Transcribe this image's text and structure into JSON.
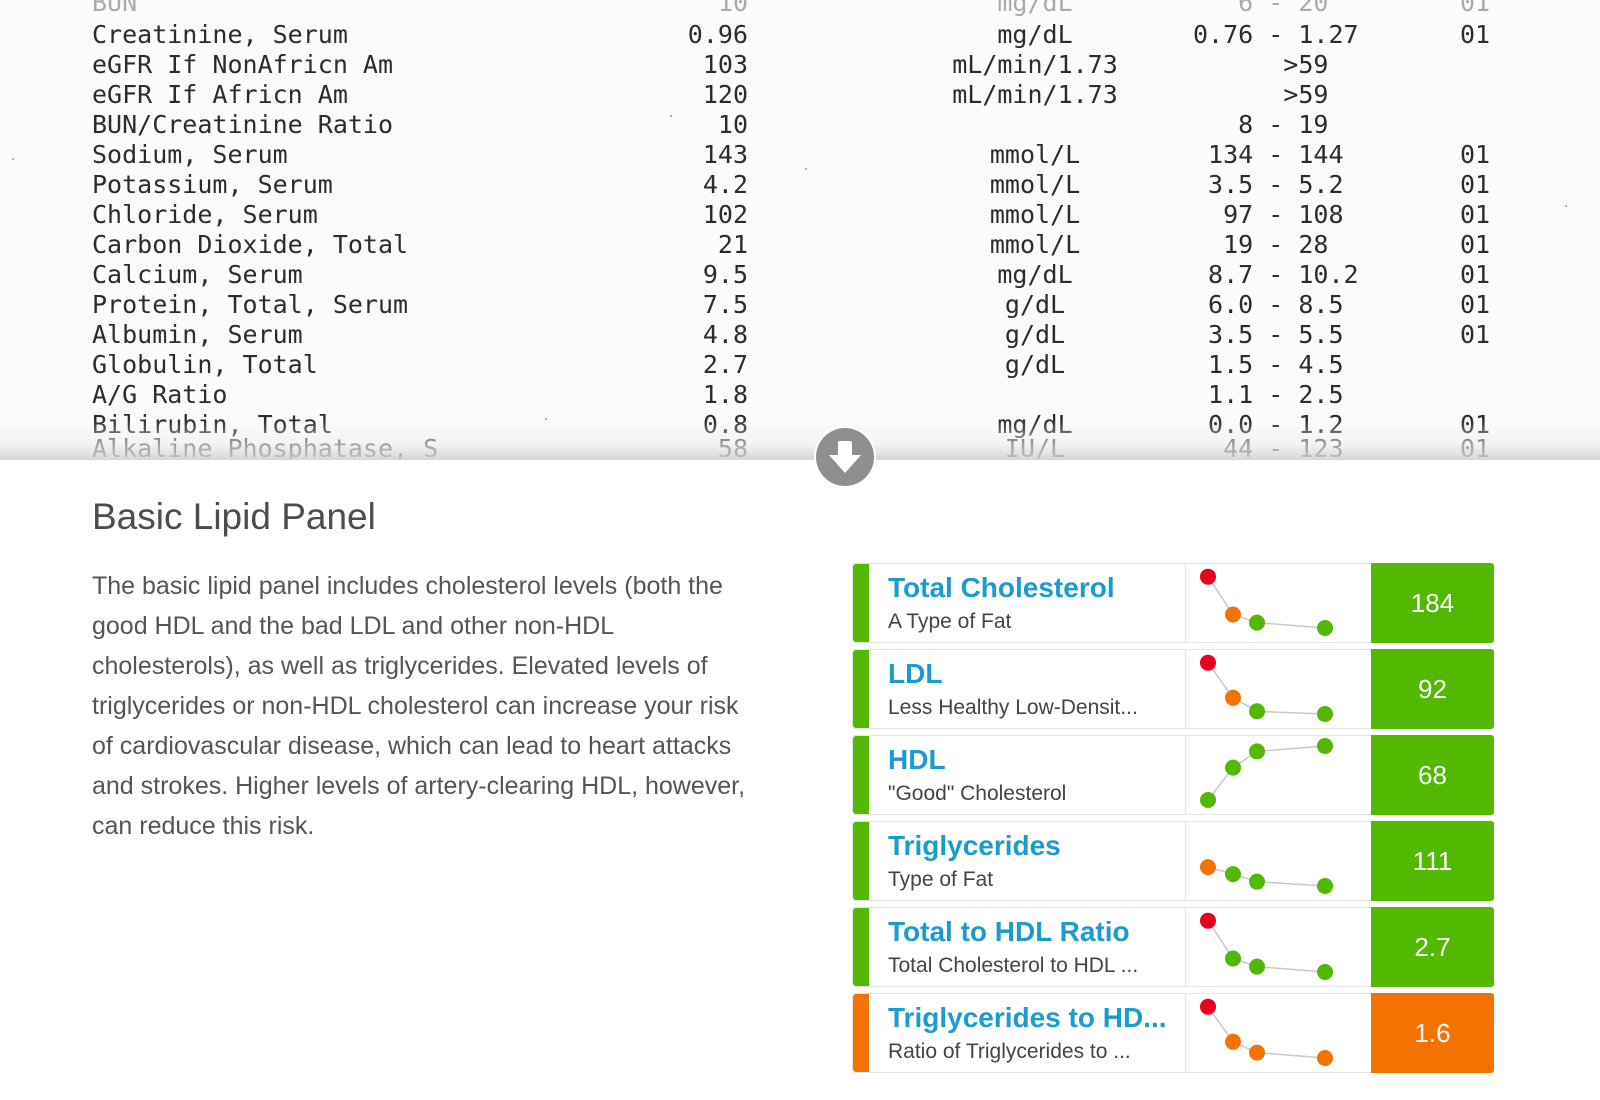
{
  "lab_report": {
    "rows": [
      {
        "name": "Creatinine, Serum",
        "value": "0.96",
        "unit": "mg/dL",
        "ref": "0.76 - 1.27",
        "flag": "01"
      },
      {
        "name": "eGFR If NonAfricn Am",
        "value": "103",
        "unit": "mL/min/1.73",
        "ref": "      >59",
        "flag": ""
      },
      {
        "name": "eGFR If Africn Am",
        "value": "120",
        "unit": "mL/min/1.73",
        "ref": "      >59",
        "flag": ""
      },
      {
        "name": "BUN/Creatinine Ratio",
        "value": "10",
        "unit": "",
        "ref": "   8 - 19",
        "flag": ""
      },
      {
        "name": "Sodium, Serum",
        "value": "143",
        "unit": "mmol/L",
        "ref": " 134 - 144",
        "flag": "01"
      },
      {
        "name": "Potassium, Serum",
        "value": "4.2",
        "unit": "mmol/L",
        "ref": " 3.5 - 5.2",
        "flag": "01"
      },
      {
        "name": "Chloride, Serum",
        "value": "102",
        "unit": "mmol/L",
        "ref": "  97 - 108",
        "flag": "01"
      },
      {
        "name": "Carbon Dioxide, Total",
        "value": "21",
        "unit": "mmol/L",
        "ref": "  19 - 28",
        "flag": "01"
      },
      {
        "name": "Calcium, Serum",
        "value": "9.5",
        "unit": "mg/dL",
        "ref": " 8.7 - 10.2",
        "flag": "01"
      },
      {
        "name": "Protein, Total, Serum",
        "value": "7.5",
        "unit": "g/dL",
        "ref": " 6.0 - 8.5",
        "flag": "01"
      },
      {
        "name": "Albumin, Serum",
        "value": "4.8",
        "unit": "g/dL",
        "ref": " 3.5 - 5.5",
        "flag": "01"
      },
      {
        "name": "Globulin, Total",
        "value": "2.7",
        "unit": "g/dL",
        "ref": " 1.5 - 4.5",
        "flag": ""
      },
      {
        "name": "A/G Ratio",
        "value": "1.8",
        "unit": "",
        "ref": " 1.1 - 2.5",
        "flag": ""
      },
      {
        "name": "Bilirubin, Total",
        "value": "0.8",
        "unit": "mg/dL",
        "ref": " 0.0 - 1.2",
        "flag": "01"
      }
    ]
  },
  "scroll_icon": "arrow-down-circle-icon",
  "panel": {
    "title": "Basic Lipid Panel",
    "description": "The basic lipid panel includes cholesterol levels (both the good HDL and the bad LDL and other non-HDL cholesterols), as well as triglycerides. Elevated levels of triglycerides or non-HDL cholesterol can increase your risk of cardiovascular disease, which can lead to heart attacks and strokes. Higher levels of artery-clearing HDL, however, can reduce this risk."
  },
  "colors": {
    "green": "#52b800",
    "orange": "#f47300",
    "red": "#e8001c",
    "link": "#1a9ccf"
  },
  "lipids": [
    {
      "name": "Total Cholesterol",
      "subtitle": "A Type of Fat",
      "value": "184",
      "status": "green",
      "trend": [
        {
          "v": 0.95,
          "c": "red"
        },
        {
          "v": 0.25,
          "c": "orange"
        },
        {
          "v": 0.1,
          "c": "green"
        },
        {
          "v": 0.0,
          "c": "green"
        }
      ]
    },
    {
      "name": "LDL",
      "subtitle": "Less Healthy Low-Densit...",
      "value": "92",
      "status": "green",
      "trend": [
        {
          "v": 0.95,
          "c": "red"
        },
        {
          "v": 0.3,
          "c": "orange"
        },
        {
          "v": 0.05,
          "c": "green"
        },
        {
          "v": 0.0,
          "c": "green"
        }
      ]
    },
    {
      "name": "HDL",
      "subtitle": "\"Good\" Cholesterol",
      "value": "68",
      "status": "green",
      "trend": [
        {
          "v": 0.0,
          "c": "green"
        },
        {
          "v": 0.6,
          "c": "green"
        },
        {
          "v": 0.9,
          "c": "green"
        },
        {
          "v": 1.0,
          "c": "green"
        }
      ]
    },
    {
      "name": "Triglycerides",
      "subtitle": "Type of Fat",
      "value": "111",
      "status": "green",
      "trend": [
        {
          "v": 0.35,
          "c": "orange"
        },
        {
          "v": 0.22,
          "c": "green"
        },
        {
          "v": 0.08,
          "c": "green"
        },
        {
          "v": 0.0,
          "c": "green"
        }
      ]
    },
    {
      "name": "Total to HDL Ratio",
      "subtitle": "Total Cholesterol to HDL ...",
      "value": "2.7",
      "status": "green",
      "trend": [
        {
          "v": 0.95,
          "c": "red"
        },
        {
          "v": 0.25,
          "c": "green"
        },
        {
          "v": 0.1,
          "c": "green"
        },
        {
          "v": 0.0,
          "c": "green"
        }
      ]
    },
    {
      "name": "Triglycerides to HD...",
      "subtitle": "Ratio of Triglycerides to ...",
      "value": "1.6",
      "status": "orange",
      "trend": [
        {
          "v": 0.95,
          "c": "red"
        },
        {
          "v": 0.3,
          "c": "orange"
        },
        {
          "v": 0.1,
          "c": "orange"
        },
        {
          "v": 0.0,
          "c": "orange"
        }
      ]
    }
  ]
}
